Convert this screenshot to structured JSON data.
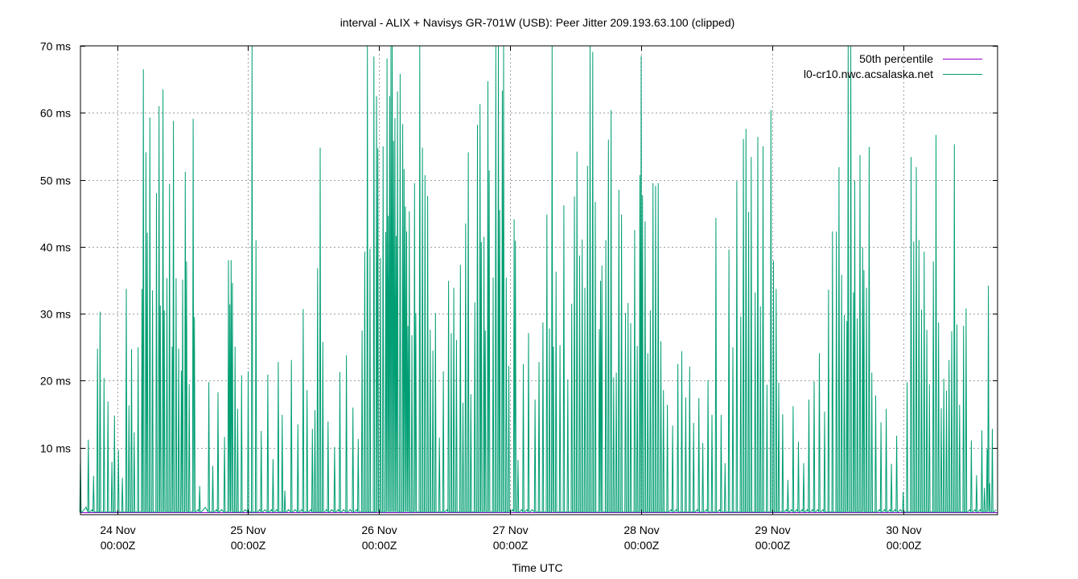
{
  "chart_data": {
    "type": "line",
    "title": "interval - ALIX + Navisys GR-701W (USB): Peer Jitter 209.193.63.100 (clipped)",
    "xlabel": "Time UTC",
    "ylabel": "",
    "ylim": [
      0,
      70
    ],
    "xlim": [
      -0.28,
      6.72
    ],
    "y_ticks": [
      {
        "value": 10,
        "label": "10 ms"
      },
      {
        "value": 20,
        "label": "20 ms"
      },
      {
        "value": 30,
        "label": "30 ms"
      },
      {
        "value": 40,
        "label": "40 ms"
      },
      {
        "value": 50,
        "label": "50 ms"
      },
      {
        "value": 60,
        "label": "60 ms"
      },
      {
        "value": 70,
        "label": "70 ms"
      }
    ],
    "x_ticks": [
      {
        "value": 0,
        "date": "24 Nov",
        "time": "00:00Z"
      },
      {
        "value": 1,
        "date": "25 Nov",
        "time": "00:00Z"
      },
      {
        "value": 2,
        "date": "26 Nov",
        "time": "00:00Z"
      },
      {
        "value": 3,
        "date": "27 Nov",
        "time": "00:00Z"
      },
      {
        "value": 4,
        "date": "28 Nov",
        "time": "00:00Z"
      },
      {
        "value": 5,
        "date": "29 Nov",
        "time": "00:00Z"
      },
      {
        "value": 6,
        "date": "30 Nov",
        "time": "00:00Z"
      }
    ],
    "grid": true,
    "legend_position": "top-right",
    "series": [
      {
        "name": "50th percentile",
        "color": "#9400d3",
        "values": [
          0.3
        ]
      },
      {
        "name": "l0-cr10.nwc.acsalaska.net",
        "color": "#009e73",
        "spikes": [
          [
            -0.28,
            8.5
          ],
          [
            -0.22,
            11.2
          ],
          [
            -0.18,
            5.8
          ],
          [
            -0.15,
            24.8
          ],
          [
            -0.13,
            30.3
          ],
          [
            -0.1,
            20.4
          ],
          [
            -0.07,
            16.9
          ],
          [
            -0.04,
            7.9
          ],
          [
            -0.02,
            14.8
          ],
          [
            0.01,
            9.7
          ],
          [
            0.04,
            5.5
          ],
          [
            0.07,
            33.7
          ],
          [
            0.09,
            16.3
          ],
          [
            0.11,
            24.7
          ],
          [
            0.13,
            12.3
          ],
          [
            0.16,
            25.0
          ],
          [
            0.19,
            33.7
          ],
          [
            0.2,
            66.5
          ],
          [
            0.22,
            54.1
          ],
          [
            0.23,
            42.1
          ],
          [
            0.25,
            59.3
          ],
          [
            0.27,
            33.5
          ],
          [
            0.3,
            48.0
          ],
          [
            0.32,
            61.0
          ],
          [
            0.33,
            31.2
          ],
          [
            0.35,
            63.5
          ],
          [
            0.36,
            30.5
          ],
          [
            0.38,
            35.3
          ],
          [
            0.4,
            49.4
          ],
          [
            0.42,
            25.1
          ],
          [
            0.43,
            58.8
          ],
          [
            0.45,
            35.3
          ],
          [
            0.47,
            24.8
          ],
          [
            0.49,
            21.5
          ],
          [
            0.5,
            35.1
          ],
          [
            0.52,
            51.2
          ],
          [
            0.53,
            37.8
          ],
          [
            0.55,
            19.5
          ],
          [
            0.58,
            59.1
          ],
          [
            0.59,
            29.5
          ],
          [
            0.63,
            4.3
          ],
          [
            0.7,
            19.8
          ],
          [
            0.73,
            7.3
          ],
          [
            0.77,
            18.3
          ],
          [
            0.82,
            11.6
          ],
          [
            0.85,
            38.0
          ],
          [
            0.86,
            31.4
          ],
          [
            0.87,
            38.0
          ],
          [
            0.88,
            34.6
          ],
          [
            0.9,
            25.1
          ],
          [
            0.92,
            15.8
          ],
          [
            0.95,
            20.8
          ],
          [
            1.0,
            21.4
          ],
          [
            1.03,
            70.0
          ],
          [
            1.06,
            41.0
          ],
          [
            1.1,
            12.5
          ],
          [
            1.15,
            20.9
          ],
          [
            1.19,
            8.3
          ],
          [
            1.23,
            22.8
          ],
          [
            1.26,
            14.9
          ],
          [
            1.28,
            3.6
          ],
          [
            1.33,
            23.1
          ],
          [
            1.38,
            13.5
          ],
          [
            1.42,
            30.7
          ],
          [
            1.45,
            18.6
          ],
          [
            1.49,
            12.8
          ],
          [
            1.51,
            15.6
          ],
          [
            1.53,
            36.8
          ],
          [
            1.55,
            54.8
          ],
          [
            1.57,
            25.8
          ],
          [
            1.61,
            13.9
          ],
          [
            1.66,
            10.1
          ],
          [
            1.7,
            21.3
          ],
          [
            1.75,
            23.8
          ],
          [
            1.8,
            16.0
          ],
          [
            1.84,
            11.3
          ],
          [
            1.87,
            27.5
          ],
          [
            1.89,
            39.3
          ],
          [
            1.91,
            70.0
          ],
          [
            1.93,
            39.7
          ],
          [
            1.96,
            68.4
          ],
          [
            1.98,
            62.5
          ],
          [
            1.99,
            54.7
          ],
          [
            2.01,
            38.3
          ],
          [
            2.03,
            55.0
          ],
          [
            2.05,
            42.2
          ],
          [
            2.06,
            68.1
          ],
          [
            2.07,
            44.6
          ],
          [
            2.08,
            62.5
          ],
          [
            2.09,
            70.0
          ],
          [
            2.1,
            70.0
          ],
          [
            2.11,
            55.8
          ],
          [
            2.12,
            59.2
          ],
          [
            2.13,
            41.6
          ],
          [
            2.14,
            63.2
          ],
          [
            2.16,
            65.8
          ],
          [
            2.18,
            58.3
          ],
          [
            2.19,
            51.6
          ],
          [
            2.2,
            46.0
          ],
          [
            2.21,
            42.3
          ],
          [
            2.22,
            28.2
          ],
          [
            2.23,
            45.3
          ],
          [
            2.25,
            26.8
          ],
          [
            2.27,
            49.5
          ],
          [
            2.28,
            30.1
          ],
          [
            2.31,
            70.0
          ],
          [
            2.33,
            54.8
          ],
          [
            2.35,
            50.7
          ],
          [
            2.37,
            47.6
          ],
          [
            2.39,
            27.6
          ],
          [
            2.41,
            24.5
          ],
          [
            2.43,
            30.1
          ],
          [
            2.46,
            11.5
          ],
          [
            2.49,
            21.4
          ],
          [
            2.53,
            34.9
          ],
          [
            2.55,
            27.1
          ],
          [
            2.57,
            33.9
          ],
          [
            2.59,
            26.1
          ],
          [
            2.62,
            37.3
          ],
          [
            2.64,
            16.7
          ],
          [
            2.66,
            43.5
          ],
          [
            2.68,
            54.1
          ],
          [
            2.7,
            18.0
          ],
          [
            2.73,
            31.7
          ],
          [
            2.75,
            58.2
          ],
          [
            2.77,
            61.3
          ],
          [
            2.78,
            40.7
          ],
          [
            2.8,
            41.5
          ],
          [
            2.81,
            27.5
          ],
          [
            2.83,
            64.7
          ],
          [
            2.84,
            51.4
          ],
          [
            2.87,
            35.4
          ],
          [
            2.89,
            70.0
          ],
          [
            2.91,
            70.0
          ],
          [
            2.92,
            45.5
          ],
          [
            2.94,
            63.3
          ],
          [
            2.95,
            70.0
          ],
          [
            2.97,
            35.4
          ],
          [
            2.99,
            22.2
          ],
          [
            3.03,
            44.1
          ],
          [
            3.04,
            40.9
          ],
          [
            3.06,
            8.2
          ],
          [
            3.1,
            22.5
          ],
          [
            3.14,
            27.1
          ],
          [
            3.19,
            17.2
          ],
          [
            3.22,
            22.8
          ],
          [
            3.25,
            28.7
          ],
          [
            3.28,
            44.8
          ],
          [
            3.3,
            27.8
          ],
          [
            3.32,
            70.0
          ],
          [
            3.33,
            25.1
          ],
          [
            3.35,
            36.3
          ],
          [
            3.38,
            25.3
          ],
          [
            3.41,
            46.2
          ],
          [
            3.44,
            20.2
          ],
          [
            3.47,
            31.5
          ],
          [
            3.49,
            47.5
          ],
          [
            3.51,
            54.2
          ],
          [
            3.53,
            38.7
          ],
          [
            3.55,
            41.1
          ],
          [
            3.57,
            33.9
          ],
          [
            3.59,
            52.1
          ],
          [
            3.61,
            70.0
          ],
          [
            3.63,
            69.1
          ],
          [
            3.65,
            46.7
          ],
          [
            3.68,
            27.7
          ],
          [
            3.69,
            34.9
          ],
          [
            3.7,
            37.2
          ],
          [
            3.73,
            41.0
          ],
          [
            3.75,
            56.0
          ],
          [
            3.77,
            60.4
          ],
          [
            3.79,
            20.5
          ],
          [
            3.81,
            21.2
          ],
          [
            3.83,
            48.5
          ],
          [
            3.85,
            44.8
          ],
          [
            3.88,
            30.1
          ],
          [
            3.9,
            31.6
          ],
          [
            3.92,
            28.6
          ],
          [
            3.95,
            42.5
          ],
          [
            3.97,
            25.2
          ],
          [
            3.99,
            50.7
          ],
          [
            4.0,
            68.5
          ],
          [
            4.01,
            47.7
          ],
          [
            4.03,
            43.8
          ],
          [
            4.05,
            24.1
          ],
          [
            4.07,
            30.5
          ],
          [
            4.09,
            49.5
          ],
          [
            4.11,
            49.1
          ],
          [
            4.13,
            49.5
          ],
          [
            4.15,
            25.9
          ],
          [
            4.17,
            18.6
          ],
          [
            4.2,
            16.4
          ],
          [
            4.24,
            13.3
          ],
          [
            4.28,
            22.5
          ],
          [
            4.31,
            24.4
          ],
          [
            4.34,
            17.5
          ],
          [
            4.37,
            22.1
          ],
          [
            4.4,
            13.7
          ],
          [
            4.44,
            17.4
          ],
          [
            4.47,
            10.7
          ],
          [
            4.51,
            20.1
          ],
          [
            4.54,
            14.9
          ],
          [
            4.57,
            44.3
          ],
          [
            4.61,
            14.9
          ],
          [
            4.64,
            7.7
          ],
          [
            4.67,
            39.6
          ],
          [
            4.7,
            25.0
          ],
          [
            4.73,
            49.8
          ],
          [
            4.76,
            29.6
          ],
          [
            4.78,
            56.1
          ],
          [
            4.8,
            57.6
          ],
          [
            4.82,
            45.2
          ],
          [
            4.84,
            53.4
          ],
          [
            4.87,
            33.2
          ],
          [
            4.89,
            56.4
          ],
          [
            4.91,
            31.1
          ],
          [
            4.93,
            55.0
          ],
          [
            4.96,
            19.4
          ],
          [
            4.99,
            60.4
          ],
          [
            5.01,
            37.9
          ],
          [
            5.03,
            33.7
          ],
          [
            5.05,
            19.7
          ],
          [
            5.08,
            15.0
          ],
          [
            5.12,
            5.2
          ],
          [
            5.16,
            16.2
          ],
          [
            5.2,
            10.9
          ],
          [
            5.24,
            7.7
          ],
          [
            5.28,
            17.2
          ],
          [
            5.32,
            19.9
          ],
          [
            5.36,
            24.1
          ],
          [
            5.4,
            15.4
          ],
          [
            5.43,
            33.6
          ],
          [
            5.46,
            42.3
          ],
          [
            5.49,
            42.3
          ],
          [
            5.51,
            51.9
          ],
          [
            5.53,
            35.8
          ],
          [
            5.55,
            29.8
          ],
          [
            5.57,
            28.9
          ],
          [
            5.58,
            70.0
          ],
          [
            5.6,
            70.0
          ],
          [
            5.62,
            33.2
          ],
          [
            5.63,
            49.9
          ],
          [
            5.65,
            29.3
          ],
          [
            5.67,
            53.7
          ],
          [
            5.69,
            39.9
          ],
          [
            5.7,
            36.5
          ],
          [
            5.72,
            33.9
          ],
          [
            5.74,
            54.9
          ],
          [
            5.76,
            21.2
          ],
          [
            5.79,
            17.8
          ],
          [
            5.83,
            13.8
          ],
          [
            5.87,
            15.8
          ],
          [
            5.91,
            7.6
          ],
          [
            5.95,
            11.8
          ],
          [
            6.0,
            3.4
          ],
          [
            6.03,
            19.8
          ],
          [
            6.06,
            53.4
          ],
          [
            6.08,
            40.8
          ],
          [
            6.1,
            51.9
          ],
          [
            6.12,
            41.0
          ],
          [
            6.14,
            30.6
          ],
          [
            6.16,
            39.3
          ],
          [
            6.18,
            27.6
          ],
          [
            6.2,
            19.5
          ],
          [
            6.23,
            37.8
          ],
          [
            6.25,
            56.7
          ],
          [
            6.27,
            28.7
          ],
          [
            6.29,
            15.9
          ],
          [
            6.31,
            20.3
          ],
          [
            6.33,
            18.5
          ],
          [
            6.35,
            23.1
          ],
          [
            6.37,
            27.4
          ],
          [
            6.39,
            55.3
          ],
          [
            6.41,
            28.4
          ],
          [
            6.43,
            16.4
          ],
          [
            6.46,
            28.2
          ],
          [
            6.48,
            30.8
          ],
          [
            6.52,
            11.1
          ],
          [
            6.56,
            5.9
          ],
          [
            6.6,
            12.6
          ],
          [
            6.62,
            4.0
          ],
          [
            6.64,
            9.8
          ],
          [
            6.65,
            34.2
          ],
          [
            6.66,
            4.7
          ],
          [
            6.68,
            12.8
          ]
        ]
      }
    ]
  }
}
